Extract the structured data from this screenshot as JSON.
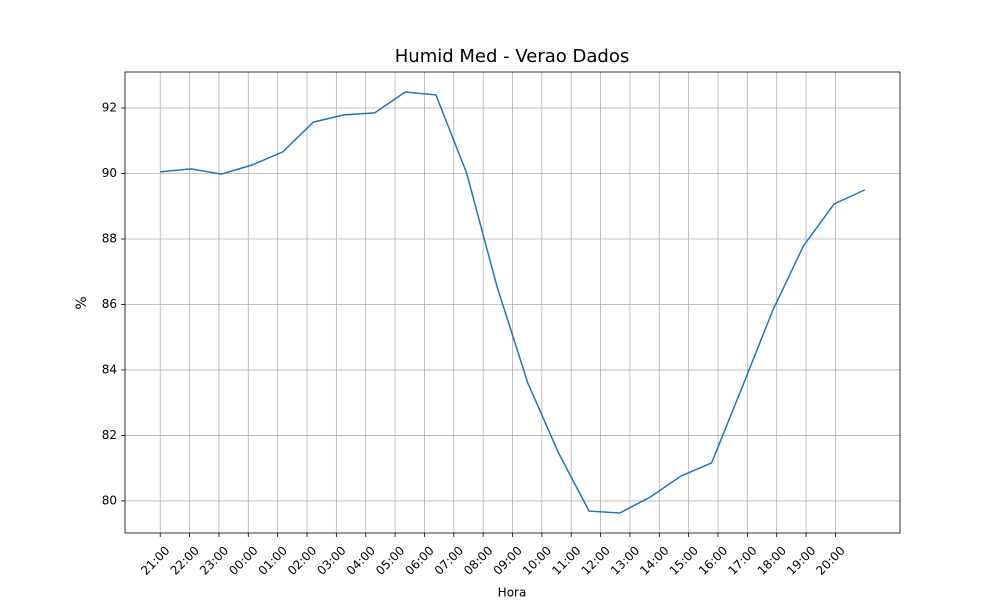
{
  "chart_data": {
    "type": "line",
    "title": "Humid Med - Verao Dados",
    "x_label": "Hora",
    "y_label": "%",
    "x": [
      0,
      1,
      2,
      3,
      4,
      5,
      6,
      7,
      8,
      9,
      10,
      11,
      12,
      13,
      14,
      15,
      16,
      17,
      18,
      19,
      20,
      21,
      22,
      23
    ],
    "series": [
      {
        "name": "Humid Med",
        "color": "#1f77b4",
        "values": [
          90.05,
          90.14,
          89.98,
          90.26,
          90.66,
          91.57,
          91.79,
          91.85,
          92.49,
          92.4,
          90.02,
          86.53,
          83.6,
          81.47,
          79.69,
          79.63,
          80.12,
          80.76,
          81.16,
          83.48,
          85.83,
          87.79,
          89.07,
          89.5
        ]
      }
    ],
    "xlim": [
      -1.15,
      24.15
    ],
    "xticks": [
      {
        "value": 0,
        "label": "21:00"
      },
      {
        "value": 0.9583,
        "label": "22:00"
      },
      {
        "value": 1.9167,
        "label": "23:00"
      },
      {
        "value": 2.875,
        "label": "00:00"
      },
      {
        "value": 3.8333,
        "label": "01:00"
      },
      {
        "value": 4.7917,
        "label": "02:00"
      },
      {
        "value": 5.75,
        "label": "03:00"
      },
      {
        "value": 6.7083,
        "label": "04:00"
      },
      {
        "value": 7.6667,
        "label": "05:00"
      },
      {
        "value": 8.625,
        "label": "06:00"
      },
      {
        "value": 9.5833,
        "label": "07:00"
      },
      {
        "value": 10.5417,
        "label": "08:00"
      },
      {
        "value": 11.5,
        "label": "09:00"
      },
      {
        "value": 12.4583,
        "label": "10:00"
      },
      {
        "value": 13.4167,
        "label": "11:00"
      },
      {
        "value": 14.375,
        "label": "12:00"
      },
      {
        "value": 15.3333,
        "label": "13:00"
      },
      {
        "value": 16.2917,
        "label": "14:00"
      },
      {
        "value": 17.25,
        "label": "15:00"
      },
      {
        "value": 18.2083,
        "label": "16:00"
      },
      {
        "value": 19.1667,
        "label": "17:00"
      },
      {
        "value": 20.125,
        "label": "18:00"
      },
      {
        "value": 21.0833,
        "label": "19:00"
      },
      {
        "value": 22.0417,
        "label": "20:00"
      }
    ],
    "ylim": [
      79.02,
      93.1
    ],
    "yticks": [
      80,
      82,
      84,
      86,
      88,
      90,
      92
    ],
    "grid": true
  }
}
